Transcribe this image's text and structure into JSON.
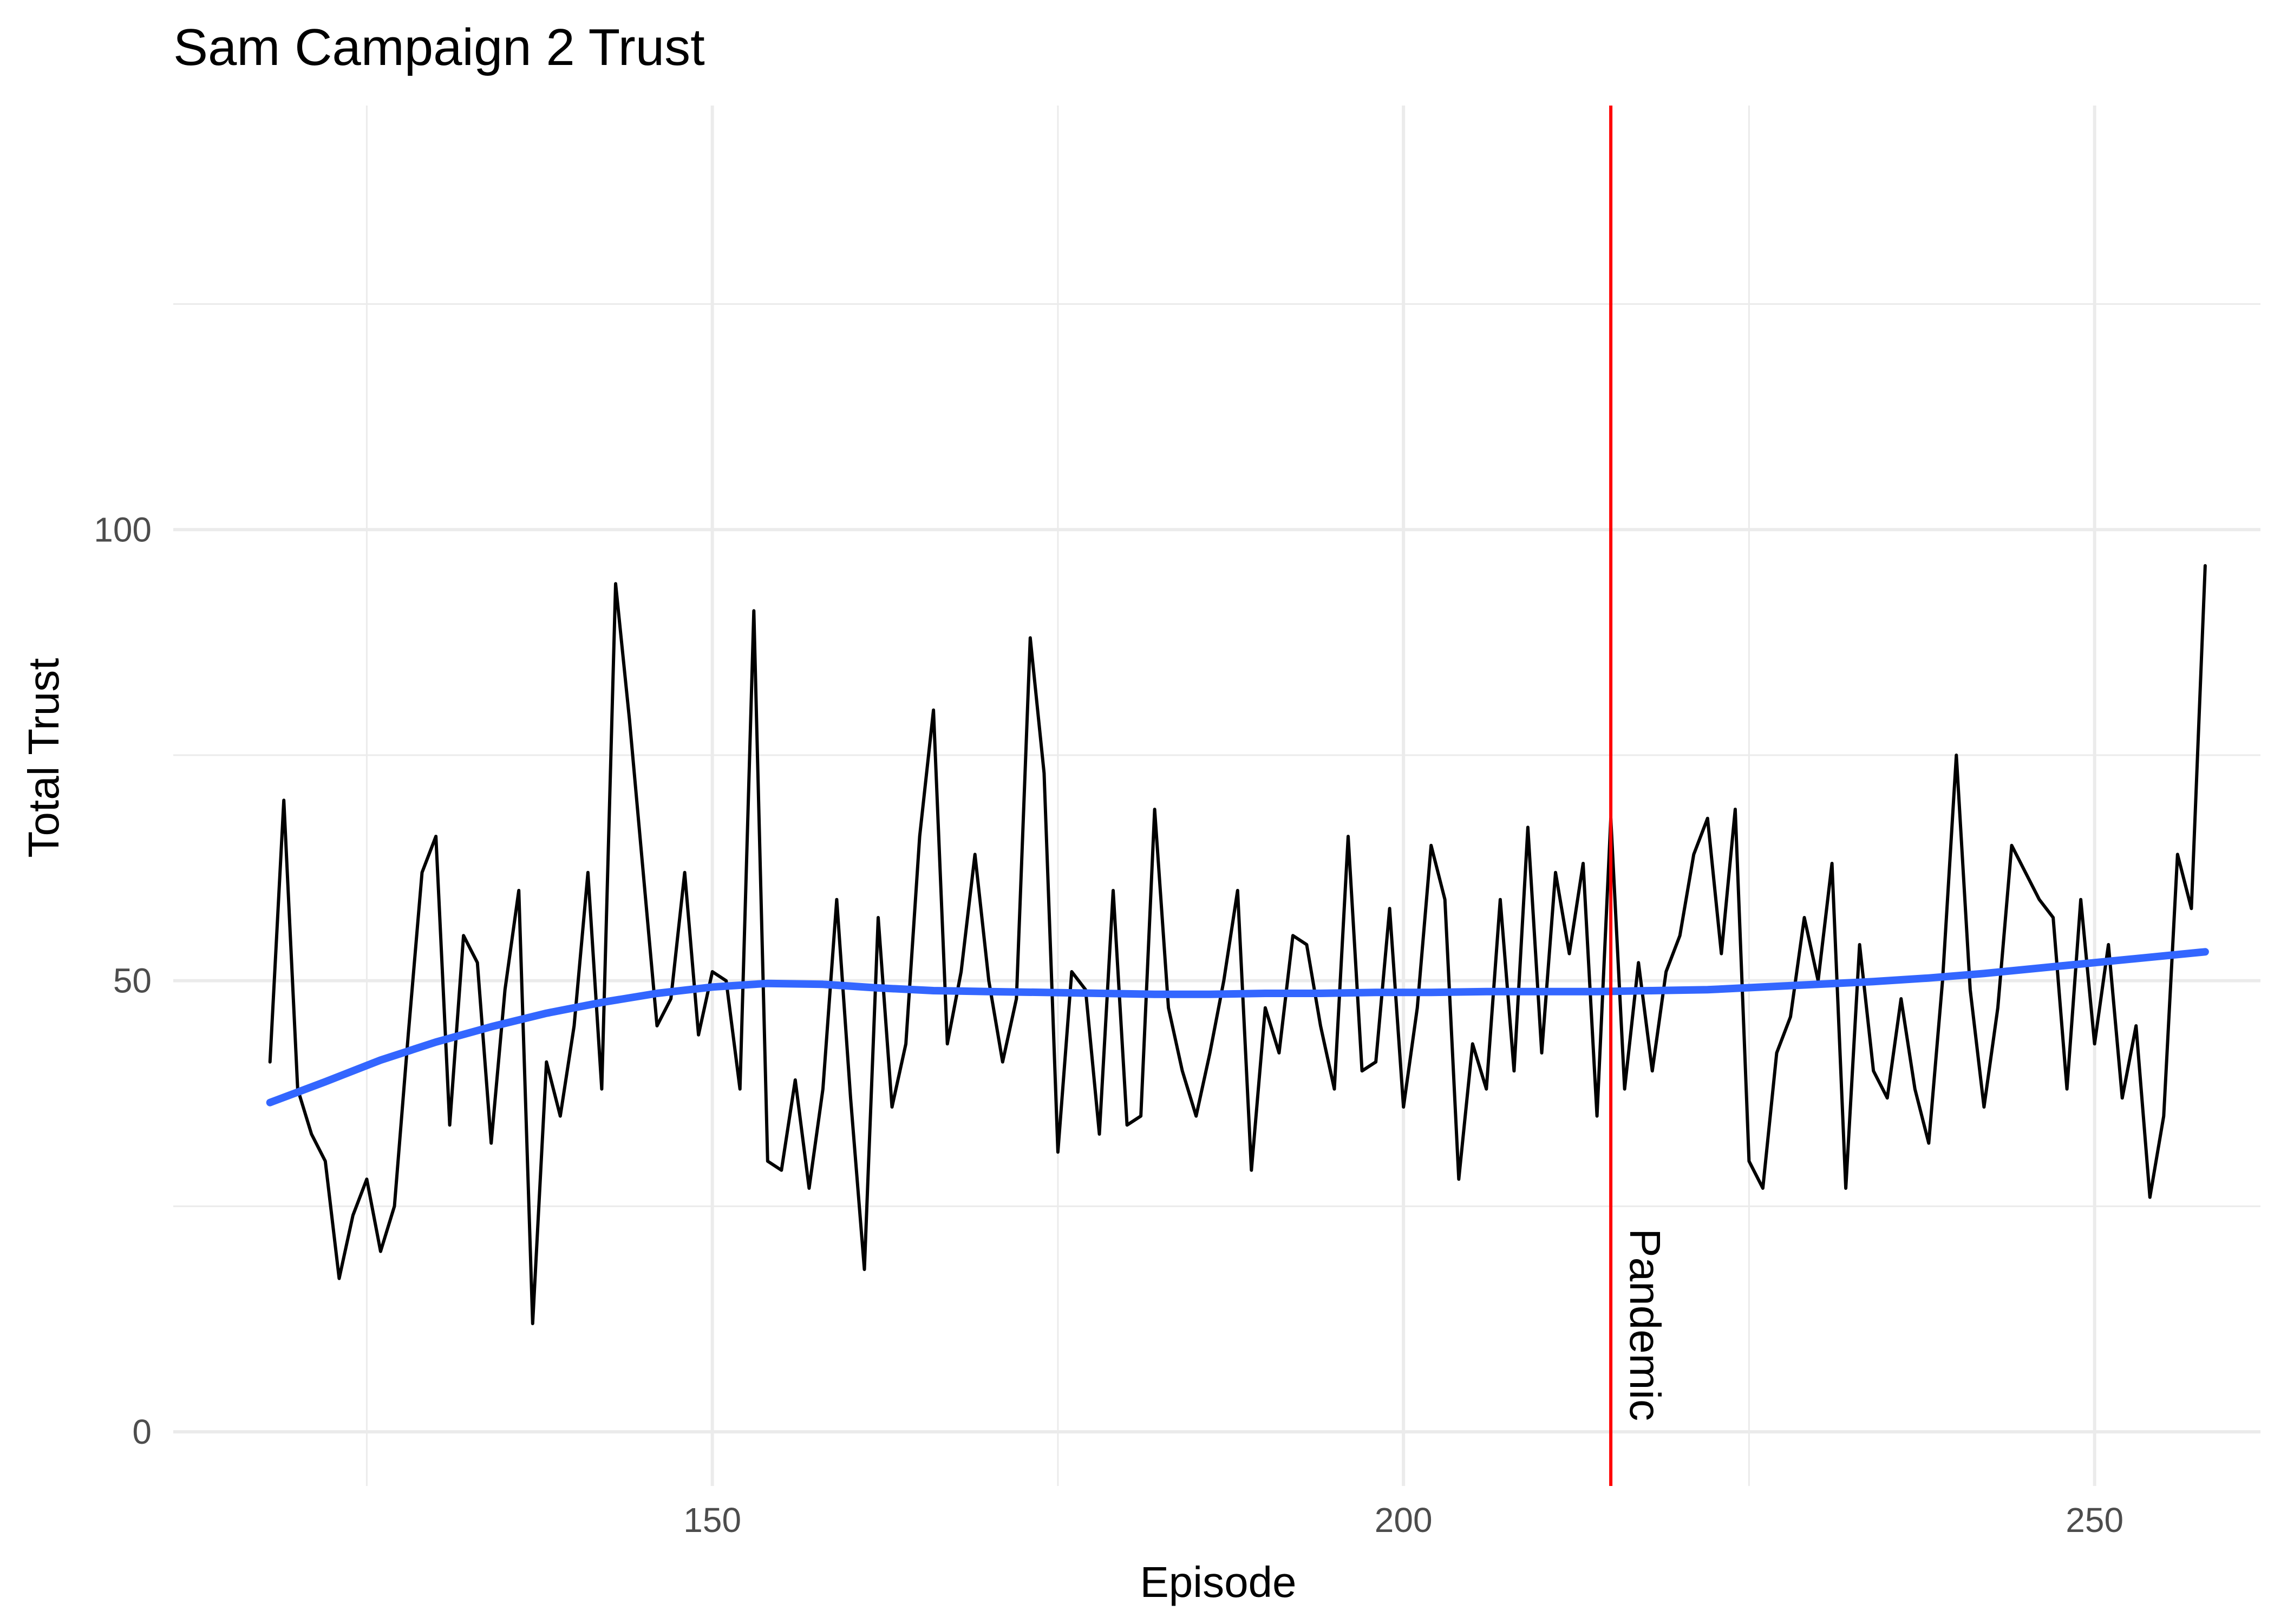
{
  "chart_data": {
    "type": "line",
    "title": "Sam Campaign 2 Trust",
    "xlabel": "Episode",
    "ylabel": "Total Trust",
    "xlim": [
      111,
      262
    ],
    "ylim": [
      -6,
      147
    ],
    "x_ticks": [
      150,
      200,
      250
    ],
    "x_minor_ticks": [
      125,
      175,
      225
    ],
    "y_ticks": [
      0,
      50,
      100
    ],
    "y_minor_ticks": [
      25,
      75,
      125
    ],
    "grid": true,
    "legend": "none",
    "series": [
      {
        "color": "#000000",
        "x": [
          118,
          119,
          120,
          121,
          122,
          123,
          124,
          125,
          126,
          127,
          128,
          129,
          130,
          131,
          132,
          133,
          134,
          135,
          136,
          137,
          138,
          139,
          140,
          141,
          142,
          143,
          144,
          145,
          146,
          147,
          148,
          149,
          150,
          151,
          152,
          153,
          154,
          155,
          156,
          157,
          158,
          159,
          160,
          161,
          162,
          163,
          164,
          165,
          166,
          167,
          168,
          169,
          170,
          171,
          172,
          173,
          174,
          175,
          176,
          177,
          178,
          179,
          180,
          181,
          182,
          183,
          184,
          185,
          186,
          187,
          188,
          189,
          190,
          191,
          192,
          193,
          194,
          195,
          196,
          197,
          198,
          199,
          200,
          201,
          202,
          203,
          204,
          205,
          206,
          207,
          208,
          209,
          210,
          211,
          212,
          213,
          214,
          215,
          216,
          217,
          218,
          219,
          220,
          221,
          222,
          223,
          224,
          225,
          226,
          227,
          228,
          229,
          230,
          231,
          232,
          233,
          234,
          235,
          236,
          237,
          238,
          239,
          240,
          241,
          242,
          243,
          244,
          245,
          246,
          247,
          248,
          249,
          250,
          251,
          252,
          253,
          254,
          255,
          256,
          257,
          258
        ],
        "y": [
          41,
          70,
          38,
          33,
          30,
          17,
          24,
          28,
          20,
          25,
          44,
          62,
          66,
          34,
          55,
          52,
          32,
          49,
          60,
          12,
          41,
          35,
          45,
          62,
          38,
          94,
          79,
          62,
          45,
          48,
          62,
          44,
          51,
          50,
          38,
          91,
          30,
          29,
          39,
          27,
          38,
          59,
          37,
          18,
          57,
          36,
          43,
          66,
          80,
          43,
          51,
          64,
          50,
          41,
          48,
          88,
          73,
          31,
          51,
          49,
          33,
          60,
          34,
          35,
          69,
          47,
          40,
          35,
          42,
          50,
          60,
          29,
          47,
          42,
          55,
          54,
          45,
          38,
          66,
          40,
          41,
          58,
          36,
          47,
          65,
          59,
          28,
          43,
          38,
          59,
          40,
          67,
          42,
          62,
          53,
          63,
          35,
          68,
          38,
          52,
          40,
          51,
          55,
          64,
          68,
          53,
          69,
          30,
          27,
          42,
          46,
          57,
          50,
          63,
          27,
          54,
          40,
          37,
          48,
          38,
          32,
          50,
          75,
          49,
          36,
          47,
          65,
          62,
          59,
          57,
          38,
          59,
          43,
          54,
          37,
          45,
          26,
          35,
          64,
          58,
          96
        ]
      },
      {
        "color": "#3366ff",
        "x": [
          118,
          122,
          126,
          130,
          134,
          138,
          142,
          146,
          150,
          154,
          158,
          162,
          166,
          170,
          174,
          178,
          182,
          186,
          190,
          194,
          198,
          202,
          206,
          210,
          214,
          218,
          222,
          226,
          230,
          234,
          238,
          242,
          246,
          250,
          254,
          258
        ],
        "y": [
          36.5,
          38.8,
          41.2,
          43.2,
          44.9,
          46.4,
          47.6,
          48.6,
          49.3,
          49.7,
          49.6,
          49.2,
          48.9,
          48.8,
          48.7,
          48.6,
          48.5,
          48.5,
          48.6,
          48.6,
          48.7,
          48.7,
          48.8,
          48.8,
          48.8,
          48.9,
          49.0,
          49.3,
          49.6,
          49.9,
          50.3,
          50.8,
          51.4,
          52.0,
          52.6,
          53.2
        ]
      }
    ],
    "annotations": [
      {
        "type": "vline",
        "x": 215,
        "color": "#ff0000",
        "label": "Pandemic"
      }
    ]
  }
}
